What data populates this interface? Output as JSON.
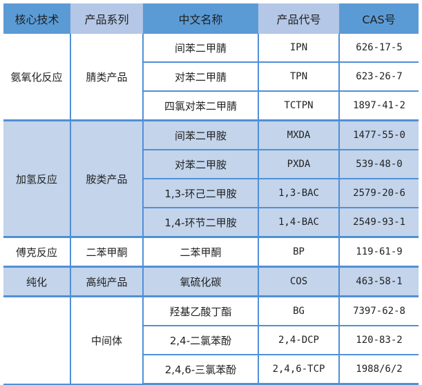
{
  "headers": [
    "核心技术",
    "产品系列",
    "中文名称",
    "产品代号",
    "CAS号"
  ],
  "colors": {
    "header_dark": "#5b9bd5",
    "header_light": "#b4c7e7",
    "band": "#c3d4eb",
    "border": "#4f8fd6"
  },
  "groups": [
    {
      "tech": "氨氧化反应",
      "series": "腈类产品",
      "band": false,
      "rows": [
        {
          "name": "间苯二甲腈",
          "code": "IPN",
          "cas": "626-17-5"
        },
        {
          "name": "对苯二甲腈",
          "code": "TPN",
          "cas": "623-26-7"
        },
        {
          "name": "四氯对苯二甲腈",
          "code": "TCTPN",
          "cas": "1897-41-2"
        }
      ]
    },
    {
      "tech": "加氢反应",
      "series": "胺类产品",
      "band": true,
      "rows": [
        {
          "name": "间苯二甲胺",
          "code": "MXDA",
          "cas": "1477-55-0"
        },
        {
          "name": "对苯二甲胺",
          "code": "PXDA",
          "cas": "539-48-0"
        },
        {
          "name": "1,3-环己二甲胺",
          "code": "1,3-BAC",
          "cas": "2579-20-6"
        },
        {
          "name": "1,4-环节二甲胺",
          "code": "1,4-BAC",
          "cas": "2549-93-1"
        }
      ]
    },
    {
      "tech": "傅克反应",
      "series": "二苯甲酮",
      "band": false,
      "rows": [
        {
          "name": "二苯甲酮",
          "code": "BP",
          "cas": "119-61-9"
        }
      ]
    },
    {
      "tech": "纯化",
      "series": "高纯产品",
      "band": true,
      "rows": [
        {
          "name": "氧硫化碳",
          "code": "COS",
          "cas": "463-58-1"
        }
      ]
    },
    {
      "tech": "",
      "series": "中间体",
      "band": false,
      "rows": [
        {
          "name": "羟基乙酸丁酯",
          "code": "BG",
          "cas": "7397-62-8"
        },
        {
          "name": "2,4-二氯苯酚",
          "code": "2,4-DCP",
          "cas": "120-83-2"
        },
        {
          "name": "2,4,6-三氯苯酚",
          "code": "2,4,6-TCP",
          "cas": "1988/6/2"
        }
      ]
    }
  ]
}
